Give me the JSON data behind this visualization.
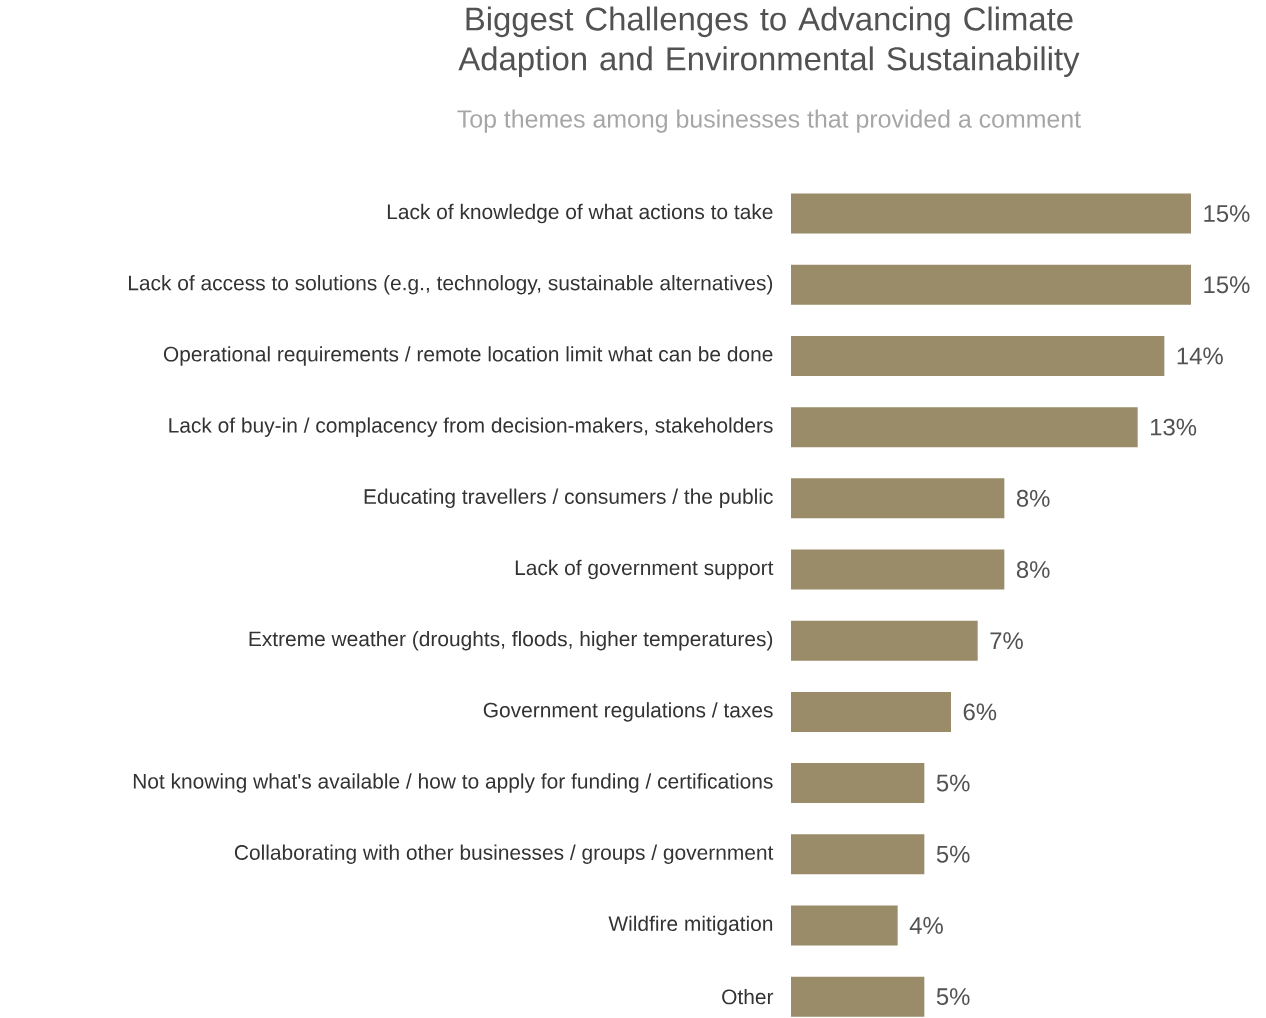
{
  "chart_data": {
    "type": "bar",
    "orientation": "horizontal",
    "title": "Biggest Challenges to Advancing Climate Adaption and Environmental Sustainability",
    "subtitle": "Top themes among businesses that provided a comment",
    "categories": [
      "Lack of knowledge of what actions to take",
      "Lack of access to solutions (e.g., technology, sustainable alternatives)",
      "Operational requirements / remote location limit what can be done",
      "Lack of buy-in / complacency from decision-makers,  stakeholders",
      "Educating travellers / consumers / the public",
      "Lack of government support",
      "Extreme weather (droughts, floods, higher temperatures)",
      "Government regulations / taxes",
      "Not knowing what's available / how to apply for funding / certifications",
      "Collaborating with other businesses / groups / government",
      "Wildfire mitigation",
      "Other"
    ],
    "values": [
      15,
      15,
      14,
      13,
      8,
      8,
      7,
      6,
      5,
      5,
      4,
      5
    ],
    "value_labels": [
      "15%",
      "15%",
      "14%",
      "13%",
      "8%",
      "8%",
      "7%",
      "6%",
      "5%",
      "5%",
      "4%",
      "5%"
    ],
    "color": "#9a8b69"
  }
}
